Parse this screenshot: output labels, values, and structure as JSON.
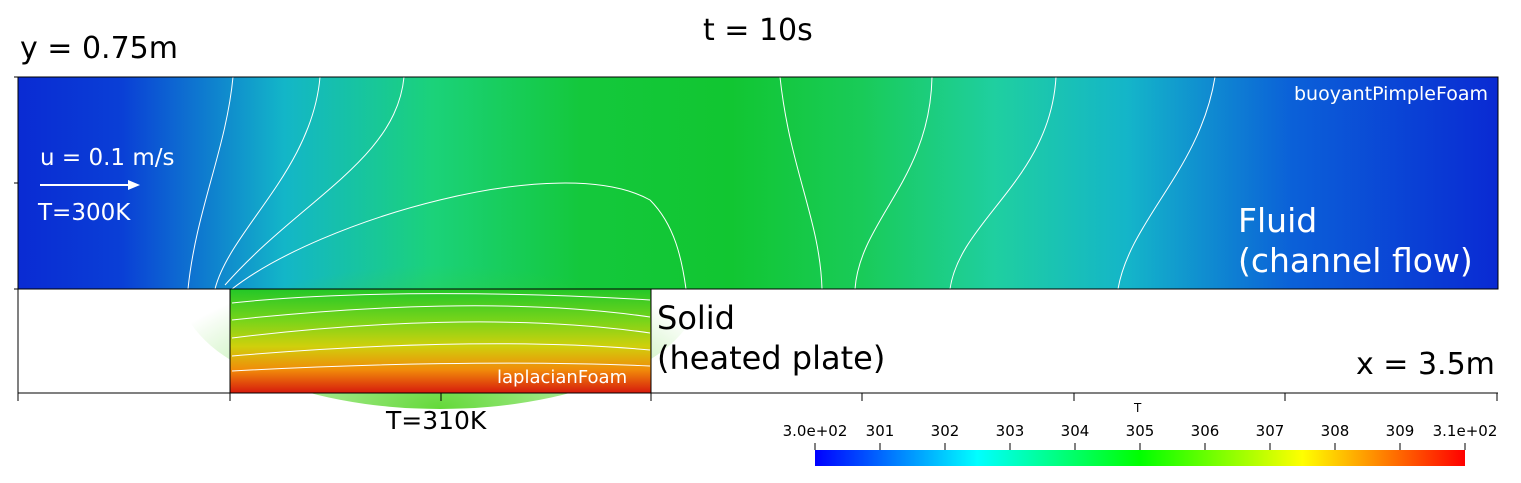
{
  "title": "t = 10s",
  "y_extent_label": "y = 0.75m",
  "x_extent_label": "x = 3.5m",
  "inlet": {
    "velocity": "u = 0.1 m/s",
    "temperature": "T=300K"
  },
  "fluid": {
    "solver": "buoyantPimpleFoam",
    "label_line1": "Fluid",
    "label_line2": "(channel flow)"
  },
  "solid": {
    "solver": "laplacianFoam",
    "label_line1": "Solid",
    "label_line2": "(heated plate)",
    "bottom_temperature": "T=310K"
  },
  "colorbar": {
    "title": "T",
    "range": [
      300,
      310
    ],
    "tick_labels": [
      "3.0e+02",
      "301",
      "302",
      "303",
      "304",
      "305",
      "306",
      "307",
      "308",
      "309",
      "3.1e+02"
    ],
    "colormap": [
      "#0000ff",
      "#00ffff",
      "#00ff00",
      "#ffff00",
      "#ff0000"
    ]
  }
}
